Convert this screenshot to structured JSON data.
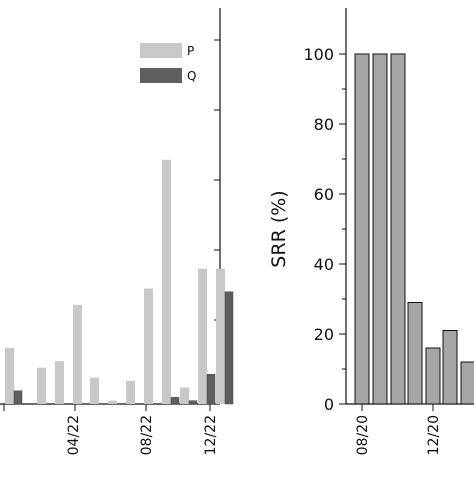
{
  "chart_data": [
    {
      "type": "bar",
      "title": "",
      "xlabel": "",
      "ylabel": "",
      "xtick_labels": [
        "04/22",
        "08/22",
        "12/22"
      ],
      "ylim": [
        0,
        100
      ],
      "legend": {
        "position": "top-right",
        "entries": [
          "P",
          "Q"
        ]
      },
      "colors": {
        "P": "#c8c8c8",
        "Q": "#5e5e5e",
        "edge": "#777777"
      },
      "series": [
        {
          "name": "P",
          "values": [
            17,
            11,
            13,
            30,
            8,
            1,
            7,
            35,
            74,
            5,
            41,
            41
          ]
        },
        {
          "name": "Q",
          "values": [
            4,
            0,
            0,
            0,
            0,
            0,
            0,
            0,
            2,
            1,
            9,
            34
          ]
        }
      ],
      "notes": "left panel partially cropped; y-axis ticks unlabeled in view"
    },
    {
      "type": "bar",
      "title": "",
      "xlabel": "",
      "ylabel": "SRR (%)",
      "ylim": [
        0,
        110
      ],
      "yticks": [
        0,
        20,
        40,
        60,
        80,
        100
      ],
      "xtick_labels": [
        "08/20",
        "12/20"
      ],
      "colors": {
        "bar": "#a6a6a6",
        "edge": "#111111"
      },
      "values": [
        100,
        100,
        100,
        29,
        16,
        21,
        12
      ]
    }
  ]
}
